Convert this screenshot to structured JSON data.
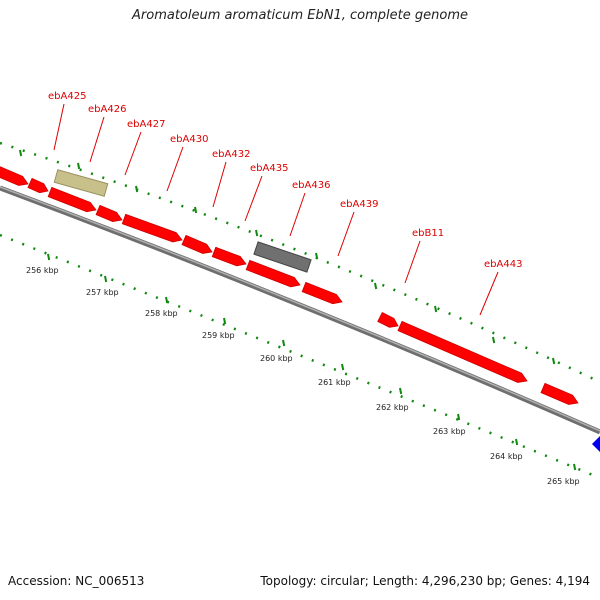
{
  "title": "Aromatoleum aromaticum EbN1, complete genome",
  "accession": "Accession: NC_006513",
  "summary": "Topology: circular; Length: 4,296,230 bp; Genes: 4,194",
  "colors": {
    "gene": "#ff0000",
    "gene_outline": "#cc0000",
    "pseudo": "#c8c08a",
    "other": "#707070",
    "next_feature": "#0000ee",
    "backbone": "#8c8c8c",
    "ticks": "#118811",
    "label": "#dd0000"
  },
  "gene_labels": [
    "ebA425",
    "ebA426",
    "ebA427",
    "ebA430",
    "ebA432",
    "ebA435",
    "ebA436",
    "ebA439",
    "ebB11",
    "ebA443"
  ],
  "scale_labels": [
    "256 kbp",
    "257 kbp",
    "258 kbp",
    "259 kbp",
    "260 kbp",
    "261 kbp",
    "262 kbp",
    "263 kbp",
    "264 kbp",
    "265 kbp"
  ]
}
